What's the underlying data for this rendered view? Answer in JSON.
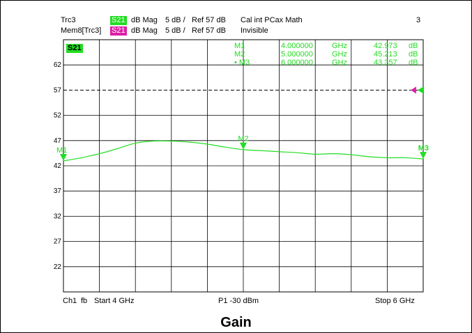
{
  "header": {
    "row1": {
      "trace": "Trc3",
      "param": "S21",
      "fmt": "dB Mag",
      "scale": "5 dB /",
      "ref": "Ref 57 dB",
      "info": "Cal int PCax Math",
      "num": "3"
    },
    "row2": {
      "trace": "Mem8[Trc3]",
      "param": "S21",
      "fmt": "dB Mag",
      "scale": "5 dB /",
      "ref": "Ref 57 dB",
      "info": "Invisible"
    }
  },
  "colors": {
    "trace": "#22dd22",
    "memory": "#dd1fa8",
    "badge_bg": "#22dd22"
  },
  "plot_badge": "S21",
  "markers": [
    {
      "name": "M1",
      "freq": "4.000000",
      "unit": "GHz",
      "value": "42.973",
      "vunit": "dB",
      "active": false
    },
    {
      "name": "M2",
      "freq": "5.000000",
      "unit": "GHz",
      "value": "45.213",
      "vunit": "dB",
      "active": false
    },
    {
      "name": "M3",
      "freq": "6.000000",
      "unit": "GHz",
      "value": "43.357",
      "vunit": "dB",
      "active": true
    }
  ],
  "footer": {
    "channel": "Ch1",
    "fb": "fb",
    "start": "Start 4 GHz",
    "power": "P1 -30 dBm",
    "stop": "Stop 6 GHz"
  },
  "caption": "Gain",
  "chart_data": {
    "type": "line",
    "title": "Gain",
    "xlabel": "",
    "ylabel": "",
    "xlim": [
      4,
      6
    ],
    "ylim": [
      17,
      67
    ],
    "yticks": [
      "62",
      "57",
      "52",
      "47",
      "42",
      "37",
      "32",
      "27",
      "22"
    ],
    "grid": true,
    "series": [
      {
        "name": "S21",
        "x": [
          4.0,
          4.1,
          4.2,
          4.3,
          4.4,
          4.5,
          4.6,
          4.7,
          4.8,
          4.9,
          5.0,
          5.1,
          5.2,
          5.3,
          5.4,
          5.5,
          5.6,
          5.7,
          5.8,
          5.9,
          6.0
        ],
        "y": [
          42.97,
          43.6,
          44.4,
          45.4,
          46.5,
          46.9,
          46.9,
          46.7,
          46.3,
          45.7,
          45.21,
          45.0,
          44.8,
          44.6,
          44.3,
          44.4,
          44.2,
          43.8,
          43.6,
          43.6,
          43.36
        ]
      }
    ],
    "reference_level": 57
  }
}
